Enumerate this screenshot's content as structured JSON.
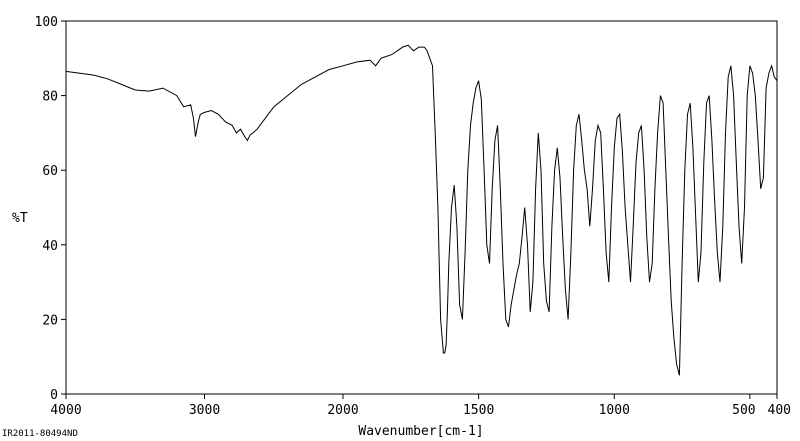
{
  "chart_data": {
    "type": "line",
    "xlabel": "Wavenumber[cm-1]",
    "ylabel": "%T",
    "xlim": [
      4000,
      400
    ],
    "ylim": [
      0,
      100
    ],
    "x_ticks": [
      {
        "value": 4000,
        "label": "4000"
      },
      {
        "value": 3000,
        "label": "3000"
      },
      {
        "value": 2000,
        "label": "2000"
      },
      {
        "value": 1500,
        "label": "1500"
      },
      {
        "value": 1000,
        "label": "1000"
      },
      {
        "value": 500,
        "label": "500"
      },
      {
        "value": 400,
        "label": "400"
      }
    ],
    "y_ticks": [
      {
        "value": 0,
        "label": "0"
      },
      {
        "value": 20,
        "label": "20"
      },
      {
        "value": 40,
        "label": "40"
      },
      {
        "value": 60,
        "label": "60"
      },
      {
        "value": 80,
        "label": "80"
      },
      {
        "value": 100,
        "label": "100"
      }
    ],
    "line_color": "#000000",
    "grid": false,
    "series": [
      {
        "x": [
          4000,
          3900,
          3800,
          3700,
          3600,
          3500,
          3400,
          3300,
          3200,
          3150,
          3100,
          3080,
          3065,
          3055,
          3045,
          3030,
          3000,
          2950,
          2900,
          2850,
          2800,
          2770,
          2740,
          2710,
          2690,
          2670,
          2650,
          2620,
          2580,
          2500,
          2400,
          2300,
          2200,
          2100,
          2000,
          1950,
          1900,
          1880,
          1860,
          1840,
          1820,
          1800,
          1780,
          1760,
          1740,
          1720,
          1700,
          1690,
          1680,
          1670,
          1660,
          1650,
          1640,
          1630,
          1625,
          1620,
          1615,
          1610,
          1600,
          1590,
          1580,
          1570,
          1560,
          1550,
          1540,
          1530,
          1520,
          1510,
          1500,
          1490,
          1480,
          1470,
          1460,
          1450,
          1440,
          1430,
          1420,
          1410,
          1400,
          1390,
          1380,
          1370,
          1360,
          1350,
          1340,
          1330,
          1320,
          1310,
          1300,
          1290,
          1280,
          1270,
          1260,
          1250,
          1240,
          1230,
          1220,
          1210,
          1200,
          1190,
          1180,
          1170,
          1160,
          1150,
          1140,
          1130,
          1120,
          1110,
          1100,
          1090,
          1080,
          1070,
          1060,
          1050,
          1040,
          1030,
          1020,
          1010,
          1000,
          990,
          980,
          970,
          960,
          950,
          940,
          930,
          920,
          910,
          900,
          890,
          880,
          870,
          860,
          850,
          840,
          830,
          820,
          810,
          800,
          790,
          780,
          770,
          760,
          750,
          740,
          730,
          720,
          710,
          700,
          690,
          680,
          670,
          660,
          650,
          640,
          630,
          620,
          610,
          600,
          590,
          580,
          570,
          560,
          550,
          540,
          530,
          520,
          510,
          500,
          490,
          480,
          470,
          460,
          450,
          440,
          430,
          420,
          410,
          400
        ],
        "y": [
          86.5,
          86,
          85.5,
          84.5,
          83,
          81.5,
          81.2,
          82,
          80,
          77,
          77.5,
          74,
          69,
          71,
          73,
          75,
          75.5,
          76,
          75,
          73,
          72,
          70,
          71,
          69,
          68,
          69.5,
          70,
          71,
          73,
          77,
          80,
          83,
          85,
          87,
          88,
          89,
          89.5,
          88,
          90,
          90.5,
          91,
          92,
          93,
          93.5,
          92,
          93,
          93,
          92,
          90,
          88,
          70,
          50,
          20,
          11,
          11,
          13,
          22,
          35,
          50,
          56,
          45,
          24,
          20,
          38,
          60,
          72,
          78,
          82,
          84,
          79,
          60,
          40,
          35,
          55,
          68,
          72,
          55,
          35,
          20,
          18,
          24,
          28,
          32,
          35,
          42,
          50,
          40,
          22,
          30,
          55,
          70,
          60,
          35,
          25,
          22,
          45,
          60,
          66,
          58,
          42,
          28,
          20,
          38,
          60,
          72,
          75,
          68,
          60,
          55,
          45,
          55,
          68,
          72,
          70,
          55,
          38,
          30,
          50,
          66,
          74,
          75,
          65,
          50,
          40,
          30,
          45,
          62,
          70,
          72,
          60,
          42,
          30,
          35,
          55,
          70,
          80,
          78,
          60,
          42,
          25,
          15,
          8,
          5,
          35,
          60,
          75,
          78,
          66,
          48,
          30,
          38,
          62,
          78,
          80,
          68,
          52,
          38,
          30,
          45,
          70,
          85,
          88,
          80,
          62,
          45,
          35,
          50,
          80,
          88,
          86,
          80,
          68,
          55,
          58,
          82,
          86,
          88,
          85,
          84
        ]
      }
    ]
  },
  "footer_id": "IR2011-80494ND"
}
